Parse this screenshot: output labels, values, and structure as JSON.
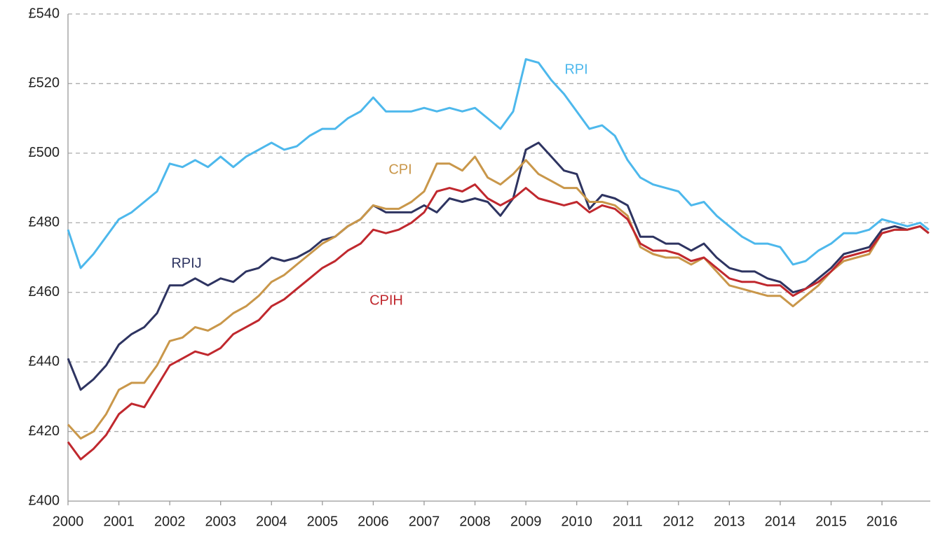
{
  "chart_data": {
    "type": "line",
    "x": [
      2000,
      2000.25,
      2000.5,
      2000.75,
      2001,
      2001.25,
      2001.5,
      2001.75,
      2002,
      2002.25,
      2002.5,
      2002.75,
      2003,
      2003.25,
      2003.5,
      2003.75,
      2004,
      2004.25,
      2004.5,
      2004.75,
      2005,
      2005.25,
      2005.5,
      2005.75,
      2006,
      2006.25,
      2006.5,
      2006.75,
      2007,
      2007.25,
      2007.5,
      2007.75,
      2008,
      2008.25,
      2008.5,
      2008.75,
      2009,
      2009.25,
      2009.5,
      2009.75,
      2010,
      2010.25,
      2010.5,
      2010.75,
      2011,
      2011.25,
      2011.5,
      2011.75,
      2012,
      2012.25,
      2012.5,
      2012.75,
      2013,
      2013.25,
      2013.5,
      2013.75,
      2014,
      2014.25,
      2014.5,
      2014.75,
      2015,
      2015.25,
      2015.5,
      2015.75,
      2016,
      2016.25,
      2016.5,
      2016.75,
      2016.92
    ],
    "series": [
      {
        "name": "RPI",
        "color": "#4db8ec",
        "values": [
          478,
          467,
          471,
          476,
          481,
          483,
          486,
          489,
          497,
          496,
          498,
          496,
          499,
          496,
          499,
          501,
          503,
          501,
          502,
          505,
          507,
          507,
          510,
          512,
          516,
          512,
          512,
          512,
          513,
          512,
          513,
          512,
          513,
          510,
          507,
          512,
          527,
          526,
          521,
          517,
          512,
          507,
          508,
          505,
          498,
          493,
          491,
          490,
          489,
          485,
          486,
          482,
          479,
          476,
          474,
          474,
          473,
          468,
          469,
          472,
          474,
          477,
          477,
          478,
          481,
          480,
          479,
          480,
          478
        ]
      },
      {
        "name": "RPIJ",
        "color": "#2e3461",
        "values": [
          441,
          432,
          435,
          439,
          445,
          448,
          450,
          454,
          462,
          462,
          464,
          462,
          464,
          463,
          466,
          467,
          470,
          469,
          470,
          472,
          475,
          476,
          479,
          481,
          485,
          483,
          483,
          483,
          485,
          483,
          487,
          486,
          487,
          486,
          482,
          487,
          501,
          503,
          499,
          495,
          494,
          484,
          488,
          487,
          485,
          476,
          476,
          474,
          474,
          472,
          474,
          470,
          467,
          466,
          466,
          464,
          463,
          460,
          461,
          464,
          467,
          471,
          472,
          473,
          478,
          479,
          478,
          479,
          477
        ]
      },
      {
        "name": "CPI",
        "color": "#c9974a",
        "values": [
          422,
          418,
          420,
          425,
          432,
          434,
          434,
          439,
          446,
          447,
          450,
          449,
          451,
          454,
          456,
          459,
          463,
          465,
          468,
          471,
          474,
          476,
          479,
          481,
          485,
          484,
          484,
          486,
          489,
          497,
          497,
          495,
          499,
          493,
          491,
          494,
          498,
          494,
          492,
          490,
          490,
          486,
          486,
          485,
          482,
          473,
          471,
          470,
          470,
          468,
          470,
          466,
          462,
          461,
          460,
          459,
          459,
          456,
          459,
          462,
          466,
          469,
          470,
          471,
          477,
          478,
          478,
          479,
          477
        ]
      },
      {
        "name": "CPIH",
        "color": "#c0282e",
        "values": [
          417,
          412,
          415,
          419,
          425,
          428,
          427,
          433,
          439,
          441,
          443,
          442,
          444,
          448,
          450,
          452,
          456,
          458,
          461,
          464,
          467,
          469,
          472,
          474,
          478,
          477,
          478,
          480,
          483,
          489,
          490,
          489,
          491,
          487,
          485,
          487,
          490,
          487,
          486,
          485,
          486,
          483,
          485,
          484,
          481,
          474,
          472,
          472,
          471,
          469,
          470,
          467,
          464,
          463,
          463,
          462,
          462,
          459,
          461,
          463,
          466,
          470,
          471,
          472,
          477,
          478,
          478,
          479,
          477
        ]
      }
    ],
    "xlim": [
      2000,
      2016.95
    ],
    "xticks": [
      2000,
      2001,
      2002,
      2003,
      2004,
      2005,
      2006,
      2007,
      2008,
      2009,
      2010,
      2011,
      2012,
      2013,
      2014,
      2015,
      2016
    ],
    "ylim": [
      400,
      540
    ],
    "yticks": [
      {
        "value": 400,
        "label": "£400"
      },
      {
        "value": 420,
        "label": "£420"
      },
      {
        "value": 440,
        "label": "£440"
      },
      {
        "value": 460,
        "label": "£460"
      },
      {
        "value": 480,
        "label": "£480"
      },
      {
        "value": 500,
        "label": "£500"
      },
      {
        "value": 520,
        "label": "£520"
      },
      {
        "value": 540,
        "label": "£540"
      }
    ],
    "grid": true
  }
}
